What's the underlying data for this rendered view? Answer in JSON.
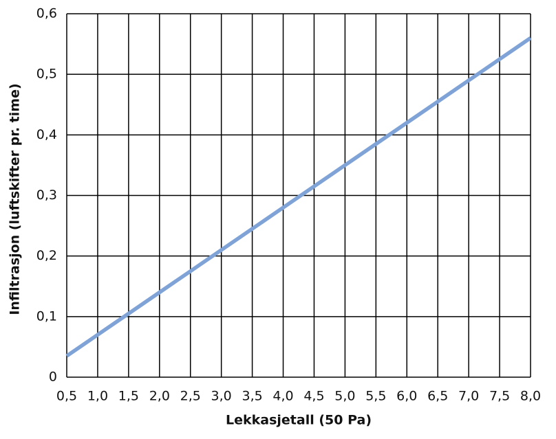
{
  "chart_data": {
    "type": "line",
    "x_label": "Lekkasjetall (50 Pa)",
    "y_label": "Infiltrasjon (luftskifter pr. time)",
    "x": [
      0.5,
      1.0,
      1.5,
      2.0,
      2.5,
      3.0,
      3.5,
      4.0,
      4.5,
      5.0,
      5.5,
      6.0,
      6.5,
      7.0,
      7.5,
      8.0
    ],
    "series": [
      {
        "color": "#7fa3d6",
        "values": [
          0.035,
          0.07,
          0.105,
          0.14,
          0.175,
          0.21,
          0.245,
          0.28,
          0.315,
          0.35,
          0.385,
          0.42,
          0.455,
          0.49,
          0.525,
          0.56
        ]
      }
    ],
    "xlim": [
      0.5,
      8.0
    ],
    "xticks": [
      {
        "value": 0.5,
        "label": "0,5"
      },
      {
        "value": 1.0,
        "label": "1,0"
      },
      {
        "value": 1.5,
        "label": "1,5"
      },
      {
        "value": 2.0,
        "label": "2,0"
      },
      {
        "value": 2.5,
        "label": "2,5"
      },
      {
        "value": 3.0,
        "label": "3,0"
      },
      {
        "value": 3.5,
        "label": "3,5"
      },
      {
        "value": 4.0,
        "label": "4,0"
      },
      {
        "value": 4.5,
        "label": "4,5"
      },
      {
        "value": 5.0,
        "label": "5,0"
      },
      {
        "value": 5.5,
        "label": "5,5"
      },
      {
        "value": 6.0,
        "label": "6,0"
      },
      {
        "value": 6.5,
        "label": "6,5"
      },
      {
        "value": 7.0,
        "label": "7,0"
      },
      {
        "value": 7.5,
        "label": "7,5"
      },
      {
        "value": 8.0,
        "label": "8,0"
      }
    ],
    "ylim": [
      0,
      0.6
    ],
    "yticks": [
      0,
      {
        "value": 0.1,
        "label": "0,1"
      },
      {
        "value": 0.2,
        "label": "0,2"
      },
      {
        "value": 0.3,
        "label": "0,3"
      },
      {
        "value": 0.4,
        "label": "0,4"
      },
      {
        "value": 0.5,
        "label": "0,5"
      },
      {
        "value": 0.6,
        "label": "0,6"
      }
    ],
    "grid": true
  }
}
